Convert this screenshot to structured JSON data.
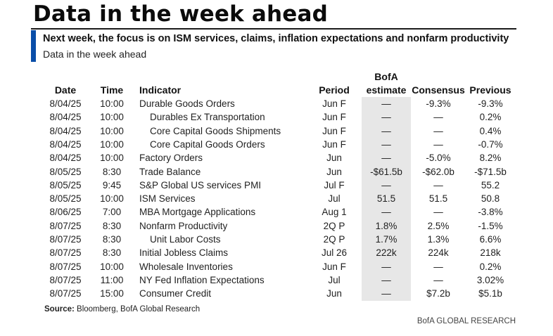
{
  "title": "Data in the week ahead",
  "subtitle": "Next week, the focus is on ISM services, claims, inflation expectations and nonfarm productivity",
  "table_caption": "Data in the week ahead",
  "columns": {
    "date": "Date",
    "time": "Time",
    "indicator": "Indicator",
    "period": "Period",
    "bofa_line1": "BofA",
    "bofa_line2": "estimate",
    "consensus": "Consensus",
    "previous": "Previous"
  },
  "rows": [
    {
      "date": "8/04/25",
      "time": "10:00",
      "indicator": "Durable Goods Orders",
      "indent": false,
      "period": "Jun F",
      "bofa": "—",
      "consensus": "-9.3%",
      "previous": "-9.3%"
    },
    {
      "date": "8/04/25",
      "time": "10:00",
      "indicator": "Durables Ex Transportation",
      "indent": true,
      "period": "Jun F",
      "bofa": "—",
      "consensus": "—",
      "previous": "0.2%"
    },
    {
      "date": "8/04/25",
      "time": "10:00",
      "indicator": "Core Capital Goods Shipments",
      "indent": true,
      "period": "Jun F",
      "bofa": "—",
      "consensus": "—",
      "previous": "0.4%"
    },
    {
      "date": "8/04/25",
      "time": "10:00",
      "indicator": "Core Capital Goods Orders",
      "indent": true,
      "period": "Jun F",
      "bofa": "—",
      "consensus": "—",
      "previous": "-0.7%"
    },
    {
      "date": "8/04/25",
      "time": "10:00",
      "indicator": "Factory Orders",
      "indent": false,
      "period": "Jun",
      "bofa": "—",
      "consensus": "-5.0%",
      "previous": "8.2%"
    },
    {
      "date": "8/05/25",
      "time": "8:30",
      "indicator": "Trade Balance",
      "indent": false,
      "period": "Jun",
      "bofa": "-$61.5b",
      "consensus": "-$62.0b",
      "previous": "-$71.5b"
    },
    {
      "date": "8/05/25",
      "time": "9:45",
      "indicator": "S&P Global US services PMI",
      "indent": false,
      "period": "Jul F",
      "bofa": "—",
      "consensus": "—",
      "previous": "55.2"
    },
    {
      "date": "8/05/25",
      "time": "10:00",
      "indicator": "ISM Services",
      "indent": false,
      "period": "Jul",
      "bofa": "51.5",
      "consensus": "51.5",
      "previous": "50.8"
    },
    {
      "date": "8/06/25",
      "time": "7:00",
      "indicator": "MBA Mortgage Applications",
      "indent": false,
      "period": "Aug 1",
      "bofa": "—",
      "consensus": "—",
      "previous": "-3.8%"
    },
    {
      "date": "8/07/25",
      "time": "8:30",
      "indicator": "Nonfarm Productivity",
      "indent": false,
      "period": "2Q P",
      "bofa": "1.8%",
      "consensus": "2.5%",
      "previous": "-1.5%"
    },
    {
      "date": "8/07/25",
      "time": "8:30",
      "indicator": "Unit Labor Costs",
      "indent": true,
      "period": "2Q P",
      "bofa": "1.7%",
      "consensus": "1.3%",
      "previous": "6.6%"
    },
    {
      "date": "8/07/25",
      "time": "8:30",
      "indicator": "Initial Jobless Claims",
      "indent": false,
      "period": "Jul 26",
      "bofa": "222k",
      "consensus": "224k",
      "previous": "218k"
    },
    {
      "date": "8/07/25",
      "time": "10:00",
      "indicator": "Wholesale Inventories",
      "indent": false,
      "period": "Jun F",
      "bofa": "—",
      "consensus": "—",
      "previous": "0.2%"
    },
    {
      "date": "8/07/25",
      "time": "11:00",
      "indicator": "NY Fed Inflation Expectations",
      "indent": false,
      "period": "Jul",
      "bofa": "—",
      "consensus": "—",
      "previous": "3.02%"
    },
    {
      "date": "8/07/25",
      "time": "15:00",
      "indicator": "Consumer Credit",
      "indent": false,
      "period": "Jun",
      "bofa": "—",
      "consensus": "$7.2b",
      "previous": "$5.1b"
    }
  ],
  "source_label": "Source:",
  "source_text": "Bloomberg, BofA Global Research",
  "brand": "BofA GLOBAL RESEARCH",
  "colors": {
    "accent": "#0a4ea8",
    "shade": "#e7e7e7"
  }
}
